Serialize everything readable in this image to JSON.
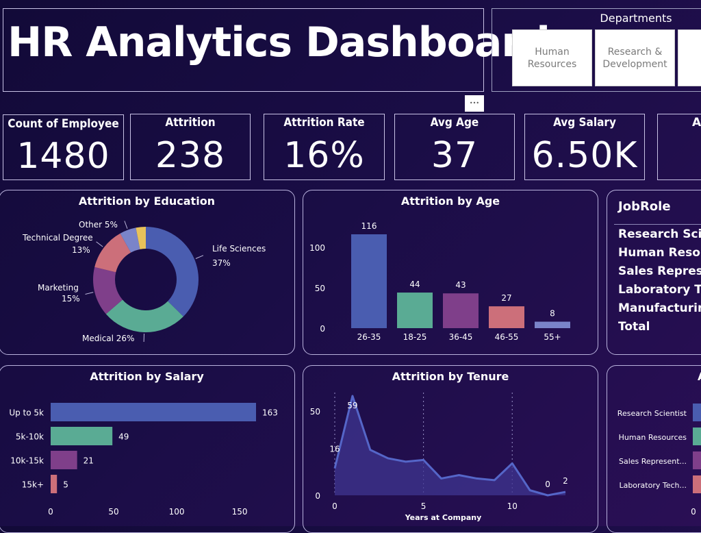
{
  "header": {
    "title": "HR Analytics Dashboard"
  },
  "departments": {
    "title": "Departments",
    "items": [
      "Human\nResources",
      "Research &\nDevelopment",
      ""
    ]
  },
  "more_options": "•••",
  "kpis": [
    {
      "label": "Count of Employee",
      "value": "1480"
    },
    {
      "label": "Attrition",
      "value": "238"
    },
    {
      "label": "Attrition Rate",
      "value": "16%"
    },
    {
      "label": "Avg Age",
      "value": "37"
    },
    {
      "label": "Avg Salary",
      "value": "6.50K"
    },
    {
      "label": "Av",
      "value": ""
    }
  ],
  "jobrole_table": {
    "header": "JobRole",
    "rows": [
      "Research Scien",
      "Human Resou",
      "Sales Represer",
      "Laboratory Te",
      "Manufacturing",
      "Total"
    ]
  },
  "partial_panel": {
    "title": "A"
  },
  "colors": {
    "blue": "#4a5db0",
    "teal": "#5aab94",
    "purple": "#7f3f8a",
    "salmon": "#cc6f7a",
    "periwinkle": "#7a84c9",
    "gold": "#e8c25a"
  },
  "chart_data": [
    {
      "id": "education",
      "type": "pie",
      "title": "Attrition by Education",
      "slices": [
        {
          "label": "Life Sciences",
          "pct_label": "37%",
          "value": 37,
          "color": "#4a5db0"
        },
        {
          "label": "Medical",
          "pct_label": "26%",
          "value": 26,
          "color": "#5aab94"
        },
        {
          "label": "Marketing",
          "pct_label": "15%",
          "value": 15,
          "color": "#7f3f8a"
        },
        {
          "label": "Technical Degree",
          "pct_label": "13%",
          "value": 13,
          "color": "#cc6f7a"
        },
        {
          "label": "Other",
          "pct_label": "5%",
          "value": 5,
          "color": "#7a84c9"
        },
        {
          "label": "",
          "pct_label": "",
          "value": 3,
          "color": "#e8c25a"
        }
      ]
    },
    {
      "id": "age",
      "type": "bar",
      "title": "Attrition by Age",
      "categories": [
        "26-35",
        "18-25",
        "36-45",
        "46-55",
        "55+"
      ],
      "values": [
        116,
        44,
        43,
        27,
        8
      ],
      "colors": [
        "#4a5db0",
        "#5aab94",
        "#7f3f8a",
        "#cc6f7a",
        "#7a84c9"
      ],
      "yticks": [
        0,
        50,
        100
      ],
      "ylim": [
        0,
        116
      ]
    },
    {
      "id": "salary",
      "type": "bar",
      "orientation": "horizontal",
      "title": "Attrition by Salary",
      "categories": [
        "Up to 5k",
        "5k-10k",
        "10k-15k",
        "15k+"
      ],
      "values": [
        163,
        49,
        21,
        5
      ],
      "colors": [
        "#4a5db0",
        "#5aab94",
        "#7f3f8a",
        "#cc6f7a"
      ],
      "xticks": [
        0,
        50,
        100,
        150
      ],
      "xlim": [
        0,
        163
      ]
    },
    {
      "id": "tenure",
      "type": "area",
      "title": "Attrition by Tenure",
      "xlabel": "Years at Company",
      "x": [
        0,
        1,
        2,
        3,
        4,
        5,
        6,
        7,
        8,
        9,
        10,
        11,
        12,
        13
      ],
      "y": [
        16,
        59,
        27,
        22,
        20,
        21,
        10,
        12,
        10,
        9,
        19,
        3,
        0,
        2
      ],
      "labeled": [
        {
          "x": 0,
          "text": "16"
        },
        {
          "x": 1,
          "text": "59"
        },
        {
          "x": 12,
          "text": "0"
        },
        {
          "x": 13,
          "text": "2"
        }
      ],
      "xticks": [
        0,
        5,
        10
      ],
      "yticks": [
        0,
        50
      ],
      "ylim": [
        0,
        59
      ]
    },
    {
      "id": "jobrole_partial",
      "type": "bar",
      "orientation": "horizontal",
      "categories": [
        "Research Scientist",
        "Human Resources",
        "Sales Represent...",
        "Laboratory Tech..."
      ],
      "colors": [
        "#4a5db0",
        "#5aab94",
        "#7f3f8a",
        "#cc6f7a"
      ],
      "xticks": [
        0
      ]
    }
  ]
}
